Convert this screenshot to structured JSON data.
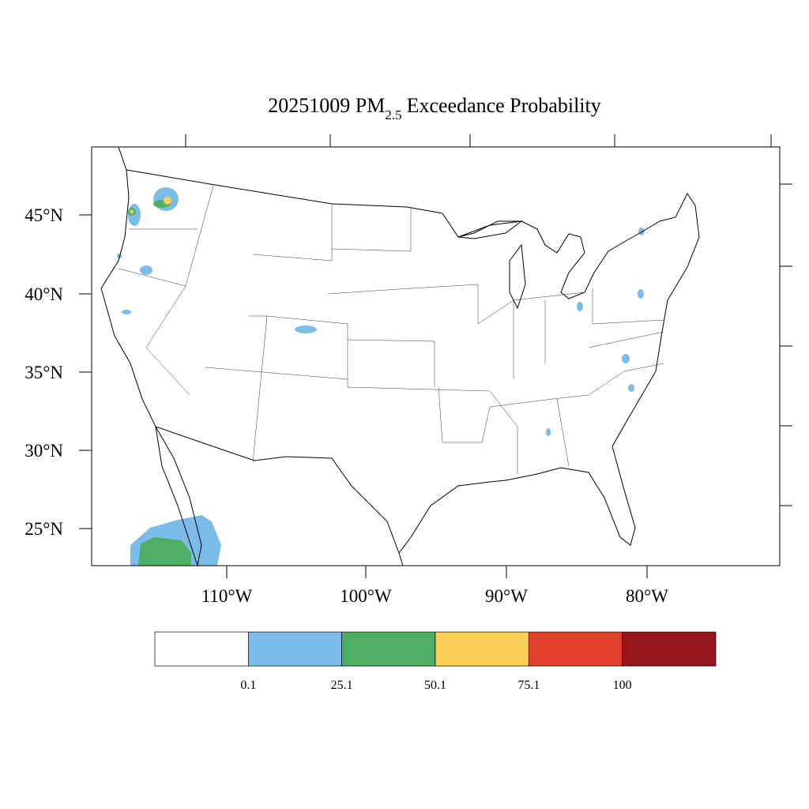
{
  "title": {
    "main": "20251009 PM",
    "sub": "2.5",
    "rest": "Exceedance Probability"
  },
  "lat_labels": [
    "45°N",
    "40°N",
    "35°N",
    "30°N",
    "25°N"
  ],
  "lon_labels": [
    "110°W",
    "100°W",
    "90°W",
    "80°W"
  ],
  "colorbar": {
    "colors": [
      "#ffffff",
      "#7cbce8",
      "#4caf63",
      "#f9cf55",
      "#e3402b",
      "#93161c"
    ],
    "labels": [
      "0.1",
      "25.1",
      "50.1",
      "75.1",
      "100"
    ]
  }
}
